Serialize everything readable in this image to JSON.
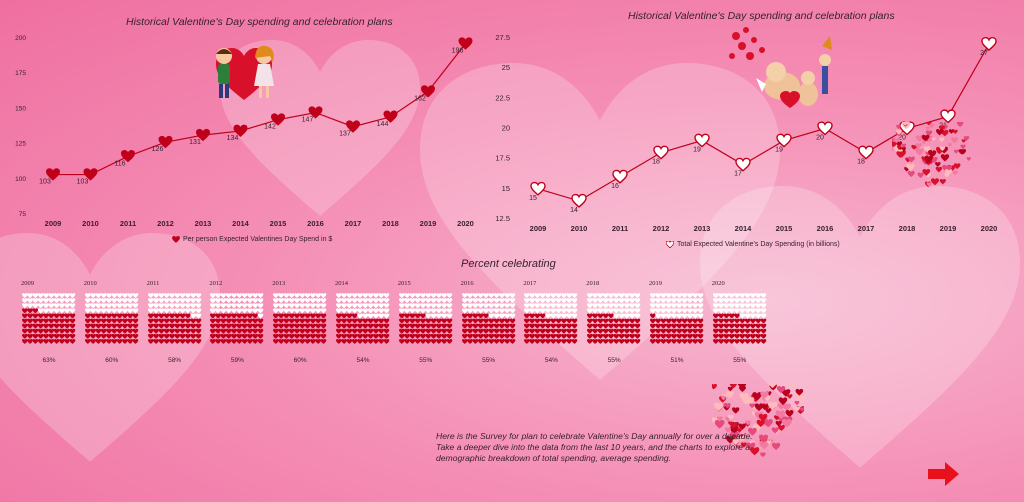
{
  "chart_data": [
    {
      "type": "line",
      "title": "Historical Valentine's Day spending and celebration plans",
      "x": [
        "2009",
        "2010",
        "2011",
        "2012",
        "2013",
        "2014",
        "2015",
        "2016",
        "2017",
        "2018",
        "2019",
        "2020"
      ],
      "series": [
        {
          "name": "Per person Expected Valentines Day Spend in $",
          "values": [
            103,
            103,
            116,
            126,
            131,
            134,
            142,
            147,
            137,
            144,
            162,
            196
          ]
        }
      ],
      "ylim": [
        75,
        200
      ],
      "yticks": [
        "75",
        "100",
        "125",
        "150",
        "175",
        "200"
      ],
      "marker": "filled-heart",
      "color": "#c0001a"
    },
    {
      "type": "line",
      "title": "Historical Valentine's Day spending and celebration plans",
      "x": [
        "2009",
        "2010",
        "2011",
        "2012",
        "2013",
        "2014",
        "2015",
        "2016",
        "2017",
        "2018",
        "2019",
        "2020"
      ],
      "series": [
        {
          "name": "Total Expected Valentine's Day Spending (in billions)",
          "values": [
            15,
            14,
            16,
            18,
            19,
            17,
            19,
            20,
            18,
            20,
            21,
            27
          ]
        }
      ],
      "ylim": [
        12.5,
        27.5
      ],
      "yticks": [
        "12.5",
        "15",
        "17.5",
        "20",
        "22.5",
        "25",
        "27.5"
      ],
      "marker": "outline-heart",
      "color": "#c0001a"
    },
    {
      "type": "waffle",
      "title": "Percent celebrating",
      "categories": [
        "2009",
        "2010",
        "2011",
        "2012",
        "2013",
        "2014",
        "2015",
        "2016",
        "2017",
        "2018",
        "2019",
        "2020"
      ],
      "values": [
        63,
        60,
        58,
        59,
        60,
        54,
        55,
        55,
        54,
        55,
        51,
        55
      ],
      "value_labels": [
        "63%",
        "60%",
        "58%",
        "59%",
        "60%",
        "54%",
        "55%",
        "55%",
        "54%",
        "55%",
        "51%",
        "55%"
      ],
      "filled_color": "#c0001a",
      "empty_color": "#ffffff"
    }
  ],
  "note": "Here is the Survey for plan to celebrate Valentine's Day annually for over a decade. Take a deeper dive into the data from the last 10 years, and the charts to explore a demographic breakdown of total spending, average spending.",
  "icons": {
    "next": "right-arrow-icon",
    "decor": "heart-cluster-icon"
  }
}
